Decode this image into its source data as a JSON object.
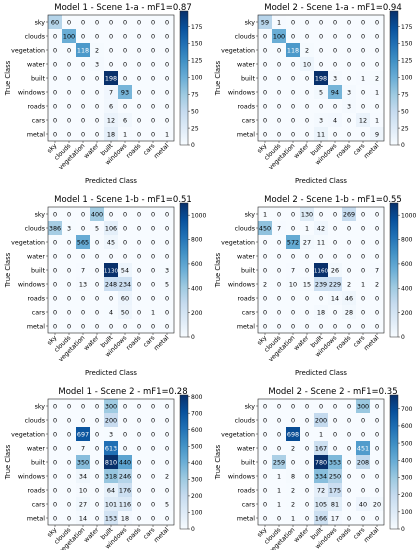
{
  "chart_data": [
    {
      "type": "heatmap",
      "title": "Model 1 - Scene 1-a - mF1=0.87",
      "xlabel": "Predicted Class",
      "ylabel": "True Class",
      "classes": [
        "sky",
        "clouds",
        "vegetation",
        "water",
        "built",
        "windows",
        "roads",
        "cars",
        "metal"
      ],
      "colorbar_ticks": [
        0,
        25,
        50,
        75,
        100,
        125,
        150,
        175
      ],
      "vmax": 198,
      "values": [
        [
          60,
          0,
          0,
          0,
          0,
          0,
          0,
          0,
          0
        ],
        [
          0,
          100,
          0,
          0,
          0,
          0,
          0,
          0,
          0
        ],
        [
          0,
          0,
          118,
          2,
          0,
          0,
          0,
          0,
          0
        ],
        [
          0,
          0,
          0,
          3,
          0,
          0,
          0,
          0,
          0
        ],
        [
          0,
          0,
          0,
          0,
          198,
          0,
          0,
          0,
          0
        ],
        [
          0,
          0,
          0,
          0,
          7,
          93,
          0,
          0,
          0
        ],
        [
          0,
          0,
          0,
          0,
          6,
          0,
          0,
          0,
          0
        ],
        [
          0,
          0,
          0,
          0,
          12,
          6,
          0,
          0,
          0
        ],
        [
          0,
          0,
          0,
          0,
          18,
          1,
          0,
          0,
          1
        ]
      ]
    },
    {
      "type": "heatmap",
      "title": "Model 2 - Scene 1-a - mF1=0.94",
      "xlabel": "Predicted Class",
      "ylabel": "True Class",
      "classes": [
        "sky",
        "clouds",
        "vegetation",
        "water",
        "built",
        "windows",
        "roads",
        "cars",
        "metal"
      ],
      "colorbar_ticks": [
        0,
        25,
        50,
        75,
        100,
        125,
        150,
        175
      ],
      "vmax": 198,
      "values": [
        [
          59,
          1,
          0,
          0,
          0,
          0,
          0,
          0,
          0
        ],
        [
          0,
          100,
          0,
          0,
          0,
          0,
          0,
          0,
          0
        ],
        [
          0,
          0,
          118,
          2,
          0,
          0,
          0,
          0,
          0
        ],
        [
          0,
          0,
          0,
          10,
          0,
          0,
          0,
          0,
          0
        ],
        [
          0,
          0,
          0,
          0,
          198,
          3,
          0,
          1,
          2
        ],
        [
          0,
          0,
          0,
          0,
          5,
          94,
          3,
          0,
          1
        ],
        [
          0,
          0,
          0,
          0,
          0,
          0,
          3,
          0,
          0
        ],
        [
          0,
          0,
          0,
          0,
          3,
          4,
          0,
          12,
          1
        ],
        [
          0,
          0,
          0,
          0,
          11,
          0,
          0,
          0,
          9
        ]
      ]
    },
    {
      "type": "heatmap",
      "title": "Model 1 - Scene 1-b - mF1=0.51",
      "xlabel": "Predicted Class",
      "ylabel": "True Class",
      "classes": [
        "sky",
        "clouds",
        "vegetation",
        "water",
        "built",
        "windows",
        "roads",
        "cars",
        "metal"
      ],
      "colorbar_ticks": [
        0,
        200,
        400,
        600,
        800,
        1000
      ],
      "vmax": 1100,
      "values": [
        [
          0,
          0,
          0,
          400,
          0,
          0,
          0,
          0,
          0
        ],
        [
          386,
          3,
          0,
          5,
          106,
          0,
          0,
          0,
          0
        ],
        [
          0,
          0,
          565,
          0,
          45,
          0,
          0,
          0,
          0
        ],
        [
          0,
          0,
          0,
          0,
          0,
          0,
          0,
          0,
          0
        ],
        [
          0,
          0,
          7,
          0,
          1130,
          54,
          0,
          0,
          3
        ],
        [
          0,
          0,
          13,
          0,
          248,
          234,
          0,
          0,
          5
        ],
        [
          0,
          0,
          0,
          0,
          0,
          60,
          0,
          0,
          0
        ],
        [
          0,
          0,
          0,
          0,
          4,
          50,
          0,
          1,
          0
        ],
        [
          0,
          0,
          0,
          0,
          0,
          0,
          0,
          0,
          0
        ]
      ]
    },
    {
      "type": "heatmap",
      "title": "Model 2 - Scene 1-b - mF1=0.55",
      "xlabel": "Predicted Class",
      "ylabel": "True Class",
      "classes": [
        "sky",
        "clouds",
        "vegetation",
        "water",
        "built",
        "windows",
        "roads",
        "cars",
        "metal"
      ],
      "colorbar_ticks": [
        0,
        200,
        400,
        600,
        800,
        1000
      ],
      "vmax": 1100,
      "values": [
        [
          1,
          0,
          0,
          130,
          0,
          0,
          269,
          0,
          0
        ],
        [
          450,
          7,
          0,
          1,
          42,
          0,
          0,
          0,
          0
        ],
        [
          0,
          0,
          572,
          27,
          11,
          0,
          0,
          0,
          0
        ],
        [
          0,
          0,
          0,
          0,
          0,
          0,
          0,
          0,
          0
        ],
        [
          0,
          0,
          7,
          0,
          1160,
          26,
          0,
          0,
          7
        ],
        [
          2,
          0,
          10,
          15,
          239,
          229,
          2,
          1,
          2
        ],
        [
          0,
          0,
          0,
          0,
          0,
          14,
          46,
          0,
          0
        ],
        [
          0,
          0,
          0,
          0,
          18,
          0,
          28,
          0,
          0
        ],
        [
          0,
          0,
          0,
          0,
          0,
          0,
          0,
          0,
          0
        ]
      ]
    },
    {
      "type": "heatmap",
      "title": "Model 1 - Scene 2 - mF1=0.28",
      "xlabel": "Predicted Class",
      "ylabel": "True Class",
      "classes": [
        "sky",
        "clouds",
        "vegetation",
        "water",
        "built",
        "windows",
        "roads",
        "cars",
        "metal"
      ],
      "colorbar_ticks": [
        0,
        100,
        200,
        300,
        400,
        500,
        600,
        700,
        800
      ],
      "vmax": 810,
      "values": [
        [
          0,
          0,
          0,
          0,
          300,
          0,
          0,
          0,
          0
        ],
        [
          0,
          0,
          0,
          0,
          200,
          0,
          0,
          0,
          0
        ],
        [
          0,
          0,
          697,
          0,
          3,
          0,
          0,
          0,
          0
        ],
        [
          0,
          0,
          7,
          0,
          613,
          0,
          0,
          0,
          0
        ],
        [
          0,
          0,
          350,
          0,
          810,
          440,
          0,
          0,
          0
        ],
        [
          0,
          0,
          34,
          0,
          318,
          246,
          0,
          0,
          2
        ],
        [
          0,
          0,
          10,
          0,
          64,
          176,
          0,
          0,
          0
        ],
        [
          0,
          0,
          27,
          0,
          101,
          116,
          0,
          0,
          5
        ],
        [
          0,
          0,
          14,
          0,
          153,
          18,
          0,
          0,
          0
        ]
      ]
    },
    {
      "type": "heatmap",
      "title": "Model 2 - Scene 2 - mF1=0.35",
      "xlabel": "Predicted Class",
      "ylabel": "True Class",
      "classes": [
        "sky",
        "clouds",
        "vegetation",
        "water",
        "built",
        "windows",
        "roads",
        "cars",
        "metal"
      ],
      "colorbar_ticks": [
        0,
        100,
        200,
        300,
        400,
        500,
        600,
        700
      ],
      "vmax": 780,
      "values": [
        [
          0,
          0,
          0,
          0,
          0,
          0,
          0,
          300,
          0
        ],
        [
          0,
          0,
          0,
          0,
          200,
          0,
          0,
          0,
          0
        ],
        [
          0,
          0,
          698,
          0,
          1,
          0,
          0,
          0,
          0
        ],
        [
          0,
          0,
          2,
          0,
          167,
          0,
          0,
          451,
          0
        ],
        [
          0,
          259,
          0,
          0,
          780,
          353,
          0,
          208,
          0
        ],
        [
          0,
          1,
          8,
          0,
          334,
          250,
          0,
          0,
          0
        ],
        [
          0,
          1,
          2,
          0,
          72,
          175,
          0,
          0,
          0
        ],
        [
          0,
          1,
          2,
          0,
          105,
          81,
          0,
          40,
          20
        ],
        [
          0,
          0,
          1,
          0,
          166,
          17,
          0,
          0,
          0
        ]
      ]
    }
  ]
}
